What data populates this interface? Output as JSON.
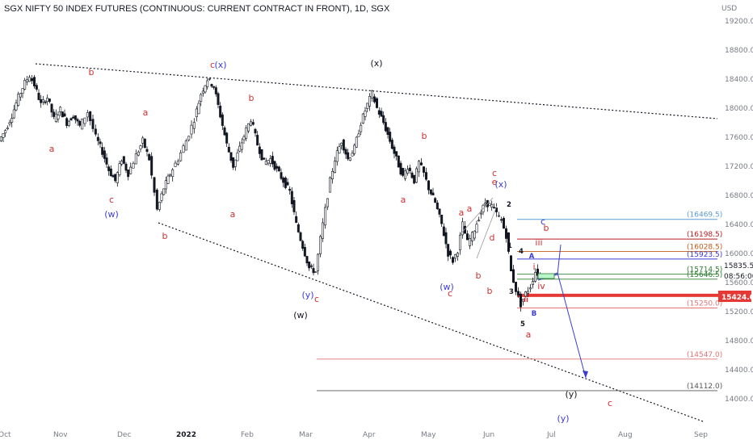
{
  "chart_data": {
    "type": "candlestick",
    "title": "SGX NIFTY 50 INDEX FUTURES (CONTINUOUS: CURRENT CONTRACT IN FRONT), 1D, SGX",
    "currency": "USD",
    "y_ticks": [
      "14000.0",
      "14400.0",
      "14800.0",
      "15200.0",
      "15600.0",
      "16000.0",
      "16400.0",
      "16800.0",
      "17200.0",
      "17600.0",
      "18000.0",
      "18400.0",
      "18800.0",
      "19200.0"
    ],
    "x_ticks": [
      "Oct",
      "Nov",
      "Dec",
      "2022",
      "Feb",
      "Mar",
      "Apr",
      "May",
      "Jun",
      "Jul",
      "Aug",
      "Sep"
    ],
    "price_path": [
      [
        0,
        17550
      ],
      [
        8,
        17700
      ],
      [
        16,
        17900
      ],
      [
        24,
        18150
      ],
      [
        32,
        18350
      ],
      [
        38,
        18450
      ],
      [
        44,
        18320
      ],
      [
        52,
        18050
      ],
      [
        60,
        18150
      ],
      [
        68,
        17850
      ],
      [
        76,
        17980
      ],
      [
        84,
        17800
      ],
      [
        92,
        17900
      ],
      [
        100,
        17750
      ],
      [
        110,
        17950
      ],
      [
        120,
        17600
      ],
      [
        128,
        17400
      ],
      [
        136,
        17150
      ],
      [
        144,
        17000
      ],
      [
        152,
        17300
      ],
      [
        160,
        17100
      ],
      [
        170,
        17350
      ],
      [
        178,
        17550
      ],
      [
        186,
        17300
      ],
      [
        196,
        16600
      ],
      [
        204,
        16900
      ],
      [
        212,
        17100
      ],
      [
        222,
        17300
      ],
      [
        232,
        17550
      ],
      [
        242,
        17850
      ],
      [
        250,
        18200
      ],
      [
        258,
        18400
      ],
      [
        266,
        18300
      ],
      [
        274,
        17900
      ],
      [
        282,
        17500
      ],
      [
        290,
        17200
      ],
      [
        298,
        17450
      ],
      [
        306,
        17700
      ],
      [
        312,
        17850
      ],
      [
        320,
        17500
      ],
      [
        328,
        17250
      ],
      [
        336,
        17300
      ],
      [
        344,
        17150
      ],
      [
        352,
        17000
      ],
      [
        360,
        16850
      ],
      [
        368,
        16400
      ],
      [
        376,
        16100
      ],
      [
        384,
        15800
      ],
      [
        392,
        15750
      ],
      [
        398,
        16200
      ],
      [
        404,
        16600
      ],
      [
        410,
        17000
      ],
      [
        416,
        17300
      ],
      [
        424,
        17550
      ],
      [
        432,
        17300
      ],
      [
        440,
        17450
      ],
      [
        448,
        17800
      ],
      [
        456,
        18050
      ],
      [
        462,
        18200
      ],
      [
        468,
        18000
      ],
      [
        476,
        17800
      ],
      [
        484,
        17550
      ],
      [
        492,
        17300
      ],
      [
        500,
        17050
      ],
      [
        506,
        17200
      ],
      [
        514,
        17000
      ],
      [
        520,
        17250
      ],
      [
        526,
        17100
      ],
      [
        532,
        16900
      ],
      [
        540,
        16700
      ],
      [
        548,
        16400
      ],
      [
        556,
        16000
      ],
      [
        562,
        15900
      ],
      [
        568,
        16050
      ],
      [
        574,
        16400
      ],
      [
        580,
        16150
      ],
      [
        586,
        16250
      ],
      [
        594,
        16500
      ],
      [
        602,
        16700
      ],
      [
        610,
        16650
      ],
      [
        616,
        16550
      ],
      [
        622,
        16450
      ],
      [
        628,
        16250
      ],
      [
        634,
        15750
      ],
      [
        640,
        15500
      ],
      [
        646,
        15300
      ],
      [
        652,
        15450
      ],
      [
        658,
        15550
      ],
      [
        664,
        15750
      ],
      [
        670,
        15700
      ]
    ],
    "last_price": "15424.0",
    "price_labels": [
      "15835.5",
      "08:56:00"
    ],
    "levels": [
      {
        "label": "(16469.5)",
        "value": 16469.5,
        "color": "#5b9bd5"
      },
      {
        "label": "(16198.5)",
        "value": 16198.5,
        "color": "#b71c1c"
      },
      {
        "label": "(16028.5)",
        "value": 16028.5,
        "color": "#c15a1a"
      },
      {
        "label": "(15923.5)",
        "value": 15923.5,
        "color": "#3b3bd6"
      },
      {
        "label": "(15714.5)",
        "value": 15714.5,
        "color": "#2e7d32"
      },
      {
        "label": "(15646.5)",
        "value": 15646.5,
        "color": "#2e7d32"
      },
      {
        "label": "(15250.0)",
        "value": 15250.0,
        "color": "#e57373"
      },
      {
        "label": "(14547.0)",
        "value": 14547.0,
        "color": "#e57373"
      },
      {
        "label": "(14112.0)",
        "value": 14112.0,
        "color": "#555555"
      }
    ],
    "wave_labels": [
      {
        "text": "b",
        "color": "#d32f2f"
      },
      {
        "text": "c",
        "color": "#d32f2f"
      },
      {
        "text": "(x)",
        "color": "#3b3bd6"
      },
      {
        "text": "(x)",
        "color": "#131722"
      },
      {
        "text": "a",
        "color": "#d32f2f"
      },
      {
        "text": "a",
        "color": "#d32f2f"
      },
      {
        "text": "b",
        "color": "#d32f2f"
      },
      {
        "text": "c",
        "color": "#d32f2f"
      },
      {
        "text": "(w)",
        "color": "#3b3bd6"
      },
      {
        "text": "b",
        "color": "#d32f2f"
      },
      {
        "text": "a",
        "color": "#d32f2f"
      },
      {
        "text": "(y)",
        "color": "#3b3bd6"
      },
      {
        "text": "c",
        "color": "#d32f2f"
      },
      {
        "text": "(w)",
        "color": "#131722"
      },
      {
        "text": "b",
        "color": "#d32f2f"
      },
      {
        "text": "a",
        "color": "#d32f2f"
      },
      {
        "text": "c",
        "color": "#d32f2f"
      },
      {
        "text": "e",
        "color": "#d32f2f"
      },
      {
        "text": "(x)",
        "color": "#3b3bd6"
      },
      {
        "text": "a",
        "color": "#d32f2f"
      },
      {
        "text": "a",
        "color": "#d32f2f"
      },
      {
        "text": "d",
        "color": "#d32f2f"
      },
      {
        "text": "b",
        "color": "#d32f2f"
      },
      {
        "text": "b",
        "color": "#d32f2f"
      },
      {
        "text": "(w)",
        "color": "#3b3bd6"
      },
      {
        "text": "c",
        "color": "#d32f2f"
      },
      {
        "text": "a",
        "color": "#d32f2f"
      },
      {
        "text": "c",
        "color": "#3b3bd6"
      },
      {
        "text": "b",
        "color": "#d32f2f"
      },
      {
        "text": "iii",
        "color": "#d32f2f"
      },
      {
        "text": "i",
        "color": "#d32f2f"
      },
      {
        "text": "iv",
        "color": "#d32f2f"
      },
      {
        "text": "(y)",
        "color": "#131722"
      },
      {
        "text": "c",
        "color": "#d32f2f"
      },
      {
        "text": "(y)",
        "color": "#3b3bd6"
      }
    ],
    "small_labels": [
      {
        "text": "2",
        "color": "#131722"
      },
      {
        "text": "1",
        "color": "#131722"
      },
      {
        "text": "4",
        "color": "#131722"
      },
      {
        "text": "3",
        "color": "#131722"
      },
      {
        "text": "5",
        "color": "#131722"
      },
      {
        "text": "A",
        "color": "#3b3bd6"
      },
      {
        "text": "B",
        "color": "#3b3bd6"
      },
      {
        "text": "ii",
        "color": "#d32f2f"
      }
    ]
  }
}
